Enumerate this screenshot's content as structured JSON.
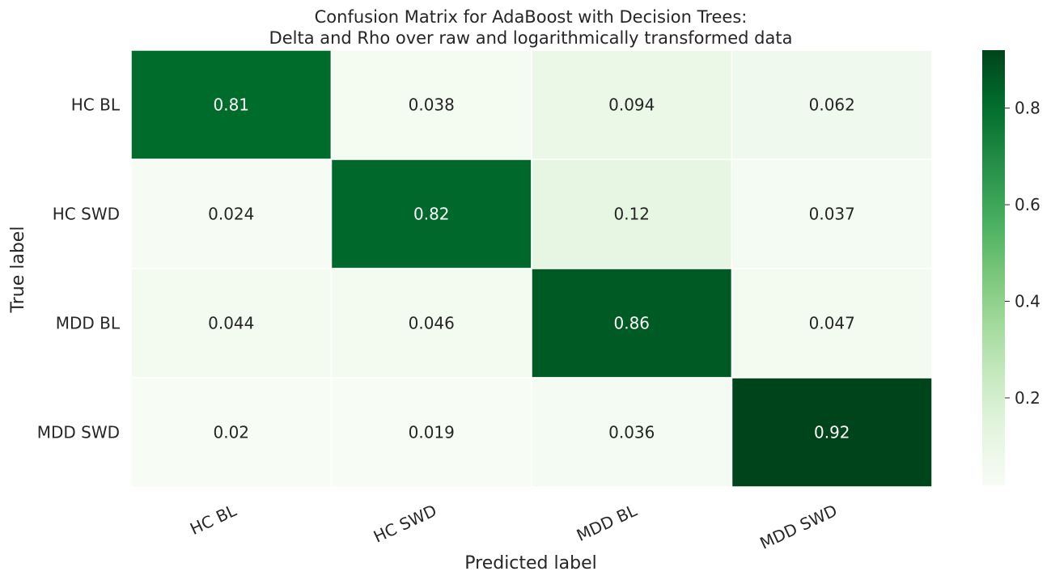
{
  "chart_data": {
    "type": "heatmap",
    "title_line1": "Confusion Matrix for AdaBoost with Decision Trees:",
    "title_line2": "Delta and Rho over raw and logarithmically transformed data",
    "xlabel": "Predicted label",
    "ylabel": "True label",
    "x_categories": [
      "HC BL",
      "HC SWD",
      "MDD BL",
      "MDD SWD"
    ],
    "y_categories": [
      "HC BL",
      "HC SWD",
      "MDD BL",
      "MDD SWD"
    ],
    "values": [
      [
        0.81,
        0.038,
        0.094,
        0.062
      ],
      [
        0.024,
        0.82,
        0.12,
        0.037
      ],
      [
        0.044,
        0.046,
        0.86,
        0.047
      ],
      [
        0.02,
        0.019,
        0.036,
        0.92
      ]
    ],
    "value_labels": [
      [
        "0.81",
        "0.038",
        "0.094",
        "0.062"
      ],
      [
        "0.024",
        "0.82",
        "0.12",
        "0.037"
      ],
      [
        "0.044",
        "0.046",
        "0.86",
        "0.047"
      ],
      [
        "0.02",
        "0.019",
        "0.036",
        "0.92"
      ]
    ],
    "colormap": "Greens",
    "vmin": 0.019,
    "vmax": 0.92,
    "colorbar_ticks": [
      0.2,
      0.4,
      0.6,
      0.8
    ],
    "colorbar_tick_labels": [
      "0.2",
      "0.4",
      "0.6",
      "0.8"
    ],
    "x_tick_rotation_deg": 25,
    "grid_lines": "white",
    "legend": "colorbar-right"
  }
}
